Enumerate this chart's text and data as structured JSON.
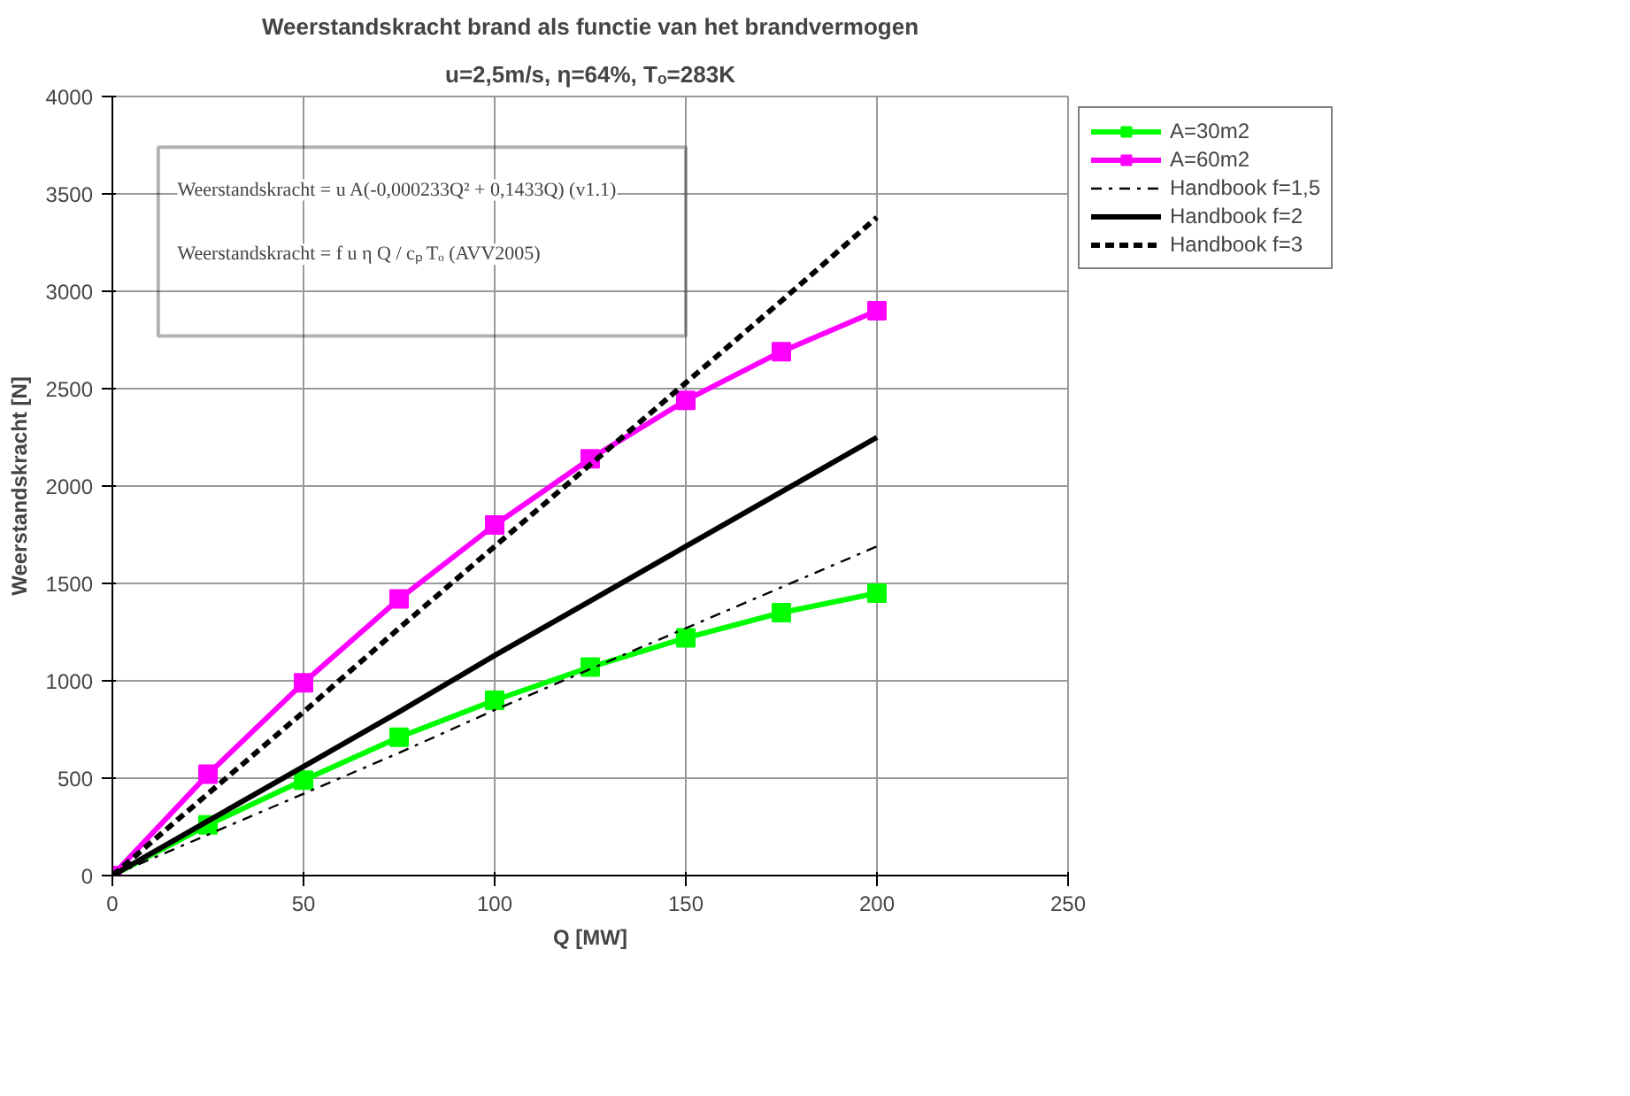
{
  "chart_data": {
    "type": "line",
    "title": "Weerstandskracht brand als functie van het brandvermogen",
    "subtitle": "u=2,5m/s, η=64%, Tₒ=283K",
    "xlabel": "Q [MW]",
    "ylabel": "Weerstandskracht [N]",
    "x": [
      0,
      25,
      50,
      75,
      100,
      125,
      150,
      175,
      200
    ],
    "xlim": [
      0,
      250
    ],
    "xticks": [
      0,
      50,
      100,
      150,
      200,
      250
    ],
    "ylim": [
      0,
      4000
    ],
    "yticks": [
      0,
      500,
      1000,
      1500,
      2000,
      2500,
      3000,
      3500,
      4000
    ],
    "grid": true,
    "legend": "top right",
    "series": [
      {
        "name": "A=30m2",
        "color": "#00ff00",
        "marker": "square",
        "line_style": "solid",
        "values": [
          0,
          260,
          490,
          710,
          900,
          1070,
          1220,
          1350,
          1450
        ]
      },
      {
        "name": "A=60m2",
        "color": "#ff00ff",
        "marker": "square",
        "line_style": "solid",
        "values": [
          0,
          520,
          990,
          1420,
          1800,
          2140,
          2440,
          2690,
          2900
        ]
      },
      {
        "name": "Handbook f=1,5",
        "color": "#000000",
        "marker": "none",
        "line_style": "dashdot",
        "values": [
          0,
          210,
          420,
          630,
          850,
          1060,
          1270,
          1480,
          1690
        ]
      },
      {
        "name": "Handbook f=2",
        "color": "#000000",
        "marker": "none",
        "line_style": "solid",
        "values": [
          0,
          280,
          560,
          840,
          1130,
          1410,
          1690,
          1970,
          2250
        ]
      },
      {
        "name": "Handbook f=3",
        "color": "#000000",
        "marker": "none",
        "line_style": "dashed",
        "values": [
          0,
          420,
          840,
          1270,
          1690,
          2110,
          2530,
          2950,
          3380
        ]
      }
    ],
    "annotations": [
      "Weerstandskracht = u A(-0,000233Q² + 0,1433Q) (v1.1)",
      "Weerstandskracht = f u η Q / cₚ Tₒ (AVV2005)"
    ]
  }
}
